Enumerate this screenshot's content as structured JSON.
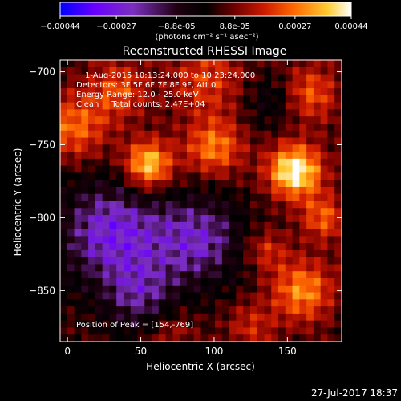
{
  "chart_data": {
    "type": "heatmap",
    "title": "Reconstructed RHESSI Image",
    "xlabel": "Heliocentric X (arcsec)",
    "ylabel": "Heliocentric Y (arcsec)",
    "xlim": [
      -5,
      187
    ],
    "ylim": [
      -885,
      -692
    ],
    "x_ticks": [
      0,
      50,
      100,
      150
    ],
    "y_ticks": [
      -700,
      -750,
      -800,
      -850
    ],
    "colorbar": {
      "range": [
        -0.00044,
        0.00044
      ],
      "tick_values": [
        -0.00044,
        -0.00027,
        -8.8e-05,
        8.8e-05,
        0.00027,
        0.00044
      ],
      "tick_labels": [
        "-0.00044",
        "-0.00027",
        "-8.8e-05",
        "8.8e-05",
        "0.00027",
        "0.00044"
      ],
      "unit_label": "(photons cm⁻² s⁻¹ asec⁻²)",
      "colormap": [
        "#0000ff",
        "#6a00ff",
        "#7b2fbf",
        "#200010",
        "#000000",
        "#700000",
        "#cc1a00",
        "#ff6600",
        "#ffcc33",
        "#ffffff"
      ]
    },
    "annotations": [
      "1-Aug-2015 10:13:24.000 to 10:23:24.000",
      "Detectors: 3F 5F 6F 7F 8F 9F, Att 0",
      "Energy Range: 12.0 - 25.0 keV",
      "Clean     Total counts: 2.47E+04",
      "Position of Peak = [154,-769]"
    ],
    "peak": {
      "x": 154,
      "y": -769
    },
    "sources": [
      {
        "x": 155,
        "y": -768,
        "amp": 0.00044,
        "sigma": 13
      },
      {
        "x": 55,
        "y": -764,
        "amp": 0.00038,
        "sigma": 12
      },
      {
        "x": 100,
        "y": -752,
        "amp": 0.00026,
        "sigma": 14
      },
      {
        "x": 5,
        "y": -738,
        "amp": 0.00024,
        "sigma": 16
      },
      {
        "x": 35,
        "y": -712,
        "amp": 0.0002,
        "sigma": 14
      },
      {
        "x": 95,
        "y": -705,
        "amp": 0.00018,
        "sigma": 18
      },
      {
        "x": 165,
        "y": -715,
        "amp": 0.00022,
        "sigma": 14
      },
      {
        "x": 160,
        "y": -850,
        "amp": 0.00028,
        "sigma": 15
      },
      {
        "x": 175,
        "y": -800,
        "amp": 0.00022,
        "sigma": 11
      },
      {
        "x": 135,
        "y": -822,
        "amp": 0.00016,
        "sigma": 10
      },
      {
        "x": 125,
        "y": -875,
        "amp": 0.00014,
        "sigma": 12
      },
      {
        "x": 70,
        "y": -878,
        "amp": 0.00012,
        "sigma": 12
      },
      {
        "x": 30,
        "y": -810,
        "amp": -0.00028,
        "sigma": 26
      },
      {
        "x": 90,
        "y": -815,
        "amp": -0.00024,
        "sigma": 22
      },
      {
        "x": 50,
        "y": -855,
        "amp": -0.00018,
        "sigma": 18
      },
      {
        "x": 140,
        "y": -720,
        "amp": -0.00012,
        "sigma": 14
      }
    ]
  },
  "footer": {
    "timestamp": "27-Jul-2017 18:37"
  }
}
